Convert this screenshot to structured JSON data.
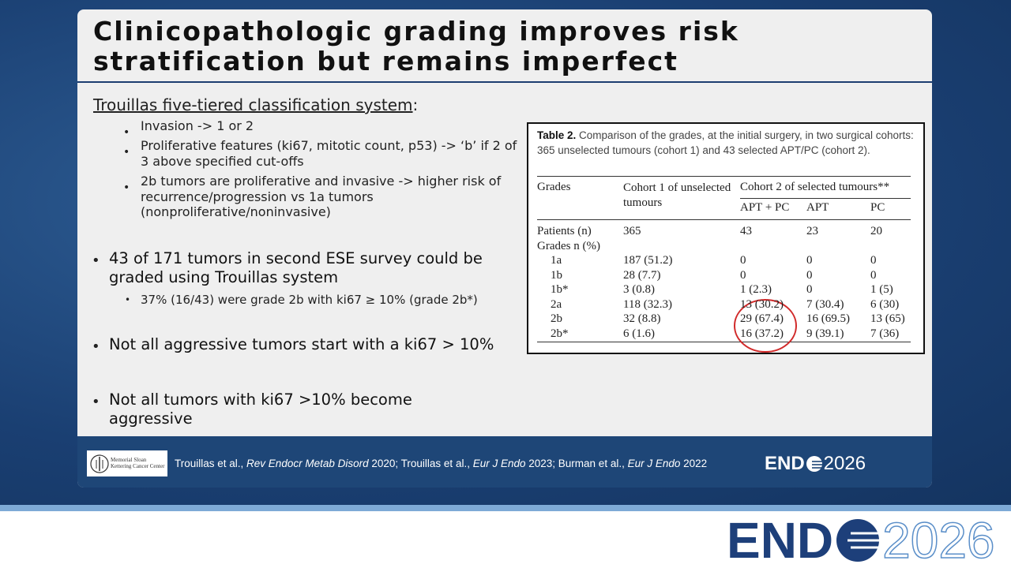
{
  "slide": {
    "title": [
      "Clinicopathologic grading improves risk",
      "stratification but remains imperfect"
    ],
    "heading": {
      "text": "Trouillas five-tiered classification system",
      "punctuation": ":"
    },
    "heading_bullets": [
      "Invasion -> 1 or 2",
      "Proliferative features (ki67, mitotic count, p53) -> ‘b’ if 2 of 3 above specified cut-offs",
      "2b tumors are proliferative and invasive -> higher risk of recurrence/progression vs 1a tumors (nonproliferative/noninvasive)"
    ],
    "bullets": [
      {
        "text": "43 of 171 tumors in second ESE survey could be graded using Trouillas system",
        "sub": [
          "37% (16/43) were grade 2b with ki67 ≥ 10% (grade 2b*)"
        ]
      },
      {
        "text": "Not all aggressive tumors start with a ki67 > 10%"
      },
      {
        "text": "Not all tumors with ki67 >10% become aggressive"
      }
    ],
    "table": {
      "label": "Table 2.",
      "caption": "Comparison of the grades, at the initial surgery, in two surgical cohorts: 365 unselected tumours (cohort 1) and 43 selected APT/PC (cohort 2).",
      "columns": [
        "Grades",
        "Cohort 1 of unselected tumours",
        "Cohort 2 of selected tumours**"
      ],
      "subcolumns": [
        "APT + PC",
        "APT",
        "PC"
      ],
      "rows": [
        [
          "Patients (n)",
          "365",
          "43",
          "23",
          "20"
        ],
        [
          "Grades n (%)"
        ],
        [
          "1a",
          "187 (51.2)",
          "0",
          "0",
          "0"
        ],
        [
          "1b",
          "28 (7.7)",
          "0",
          "0",
          "0"
        ],
        [
          "1b*",
          "3 (0.8)",
          "1 (2.3)",
          "0",
          "1 (5)"
        ],
        [
          "2a",
          "118 (32.3)",
          "13 (30.2)",
          "7 (30.4)",
          "6 (30)"
        ],
        [
          "2b",
          "32 (8.8)",
          "29 (67.4)",
          "16 (69.5)",
          "13 (65)"
        ],
        [
          "2b*",
          "6 (1.6)",
          "16 (37.2)",
          "9 (39.1)",
          "7 (36)"
        ]
      ]
    }
  },
  "footer": {
    "institution": "Memorial Sloan Kettering Cancer Center",
    "citation": [
      {
        "text": "Trouillas et al., ",
        "italic": false
      },
      {
        "text": "Rev Endocr Metab Disord",
        "italic": true
      },
      {
        "text": " 2020; Trouillas et al., ",
        "italic": false
      },
      {
        "text": "Eur J Endo",
        "italic": true
      },
      {
        "text": " 2023; Burman et al., ",
        "italic": false
      },
      {
        "text": "Eur J Endo",
        "italic": true
      },
      {
        "text": " 2022",
        "italic": false
      }
    ]
  },
  "logo": {
    "left": "END",
    "right": "2026"
  }
}
